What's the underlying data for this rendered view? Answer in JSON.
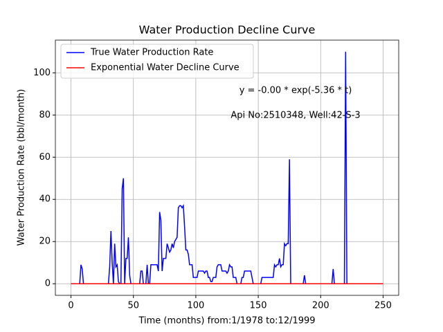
{
  "chart_data": {
    "type": "line",
    "title": "Water Production Decline Curve",
    "x_label": "Time (months) from:1/1978 to:12/1999",
    "y_label": "Water Production Rate (bbl/month)",
    "annotations": [
      "y = -0.00 * exp(-5.36 * t)",
      "Api No:2510348, Well:42-S-3"
    ],
    "xlim": [
      -12.5,
      262.5
    ],
    "ylim": [
      -5.5,
      115.5
    ],
    "xticks": [
      0,
      50,
      100,
      150,
      200,
      250
    ],
    "yticks": [
      0,
      20,
      40,
      60,
      80,
      100
    ],
    "grid": true,
    "legend": "upper left",
    "series": [
      {
        "name": "True Water Production Rate",
        "color": "#0000ff",
        "x": [
          0,
          1,
          2,
          3,
          4,
          5,
          6,
          7,
          8,
          9,
          10,
          11,
          12,
          13,
          14,
          15,
          16,
          17,
          18,
          19,
          20,
          21,
          22,
          23,
          24,
          25,
          26,
          27,
          28,
          29,
          30,
          31,
          32,
          33,
          34,
          35,
          36,
          37,
          38,
          39,
          40,
          41,
          42,
          43,
          44,
          45,
          46,
          47,
          48,
          49,
          50,
          51,
          52,
          53,
          54,
          55,
          56,
          57,
          58,
          59,
          60,
          61,
          62,
          63,
          64,
          65,
          66,
          67,
          68,
          69,
          70,
          71,
          72,
          73,
          74,
          75,
          76,
          77,
          78,
          79,
          80,
          81,
          82,
          83,
          84,
          85,
          86,
          87,
          88,
          89,
          90,
          91,
          92,
          93,
          94,
          95,
          96,
          97,
          98,
          99,
          100,
          101,
          102,
          103,
          104,
          105,
          106,
          107,
          108,
          109,
          110,
          111,
          112,
          113,
          114,
          115,
          116,
          117,
          118,
          119,
          120,
          121,
          122,
          123,
          124,
          125,
          126,
          127,
          128,
          129,
          130,
          131,
          132,
          133,
          134,
          135,
          136,
          137,
          138,
          139,
          140,
          141,
          142,
          143,
          144,
          145,
          146,
          147,
          148,
          149,
          150,
          151,
          152,
          153,
          154,
          155,
          156,
          157,
          158,
          159,
          160,
          161,
          162,
          163,
          164,
          165,
          166,
          167,
          168,
          169,
          170,
          171,
          172,
          173,
          174,
          175,
          176,
          177,
          178,
          179,
          180,
          181,
          182,
          183,
          184,
          185,
          186,
          187,
          188,
          189,
          190,
          191,
          192,
          193,
          194,
          195,
          196,
          197,
          198,
          199,
          200,
          201,
          202,
          203,
          204,
          205,
          206,
          207,
          208,
          209,
          210,
          211,
          212,
          213,
          214,
          215,
          216,
          217,
          218,
          219,
          220,
          221,
          222,
          223,
          224,
          225,
          226,
          227,
          228,
          229,
          230,
          231,
          232,
          233,
          234,
          235,
          236,
          237,
          238,
          239,
          240,
          241,
          242,
          243,
          244,
          245,
          246,
          247,
          248,
          249,
          250
        ],
        "values": [
          0,
          0,
          0,
          0,
          0,
          0,
          0,
          0,
          9,
          7,
          0,
          0,
          0,
          0,
          0,
          0,
          0,
          0,
          0,
          0,
          0,
          0,
          0,
          0,
          0,
          0,
          0,
          0,
          0,
          0,
          0,
          8,
          25,
          10,
          0,
          19,
          8,
          9,
          1,
          0,
          0,
          45,
          50,
          0,
          12,
          12,
          22,
          4,
          0,
          0,
          0,
          0,
          0,
          0,
          0,
          0,
          6,
          6,
          0,
          0,
          0,
          9,
          0,
          0,
          9,
          9,
          9,
          9,
          9,
          9,
          6,
          34,
          30,
          6,
          12,
          12,
          12,
          19,
          17,
          15,
          16,
          19,
          17,
          20,
          21,
          22,
          36,
          37,
          37,
          36,
          37,
          27,
          16,
          16,
          14,
          9,
          9,
          9,
          3,
          3,
          3,
          3,
          6,
          6,
          6,
          6,
          6,
          5,
          6,
          6,
          3,
          3,
          1,
          1,
          3,
          3,
          3,
          8,
          9,
          9,
          9,
          6,
          6,
          6,
          6,
          5,
          6,
          9,
          8,
          8,
          3,
          3,
          3,
          0,
          0,
          0,
          0,
          3,
          3,
          6,
          6,
          6,
          6,
          6,
          6,
          3,
          0,
          0,
          0,
          0,
          0,
          0,
          0,
          3,
          3,
          3,
          3,
          3,
          3,
          3,
          3,
          3,
          3,
          9,
          8,
          9,
          9,
          12,
          8,
          9,
          9,
          19,
          18,
          19,
          19,
          59,
          0,
          0,
          0,
          0,
          0,
          0,
          0,
          0,
          0,
          0,
          0,
          4,
          0,
          0,
          0,
          0,
          0,
          0,
          0,
          0,
          0,
          0,
          0,
          0,
          0,
          0,
          0,
          0,
          0,
          0,
          0,
          0,
          0,
          0,
          7,
          0,
          0,
          0,
          0,
          0,
          0,
          0,
          0,
          0,
          110,
          0,
          0,
          0,
          0,
          0,
          0,
          0,
          0,
          0,
          0,
          0,
          0,
          0,
          0,
          0,
          0,
          0,
          0,
          0,
          0,
          0,
          0,
          0,
          0,
          0,
          0,
          0,
          0,
          0,
          0
        ]
      },
      {
        "name": "Exponential Water Decline Curve",
        "color": "#ff0000",
        "x": [
          0,
          250
        ],
        "values": [
          0,
          0
        ]
      }
    ]
  }
}
